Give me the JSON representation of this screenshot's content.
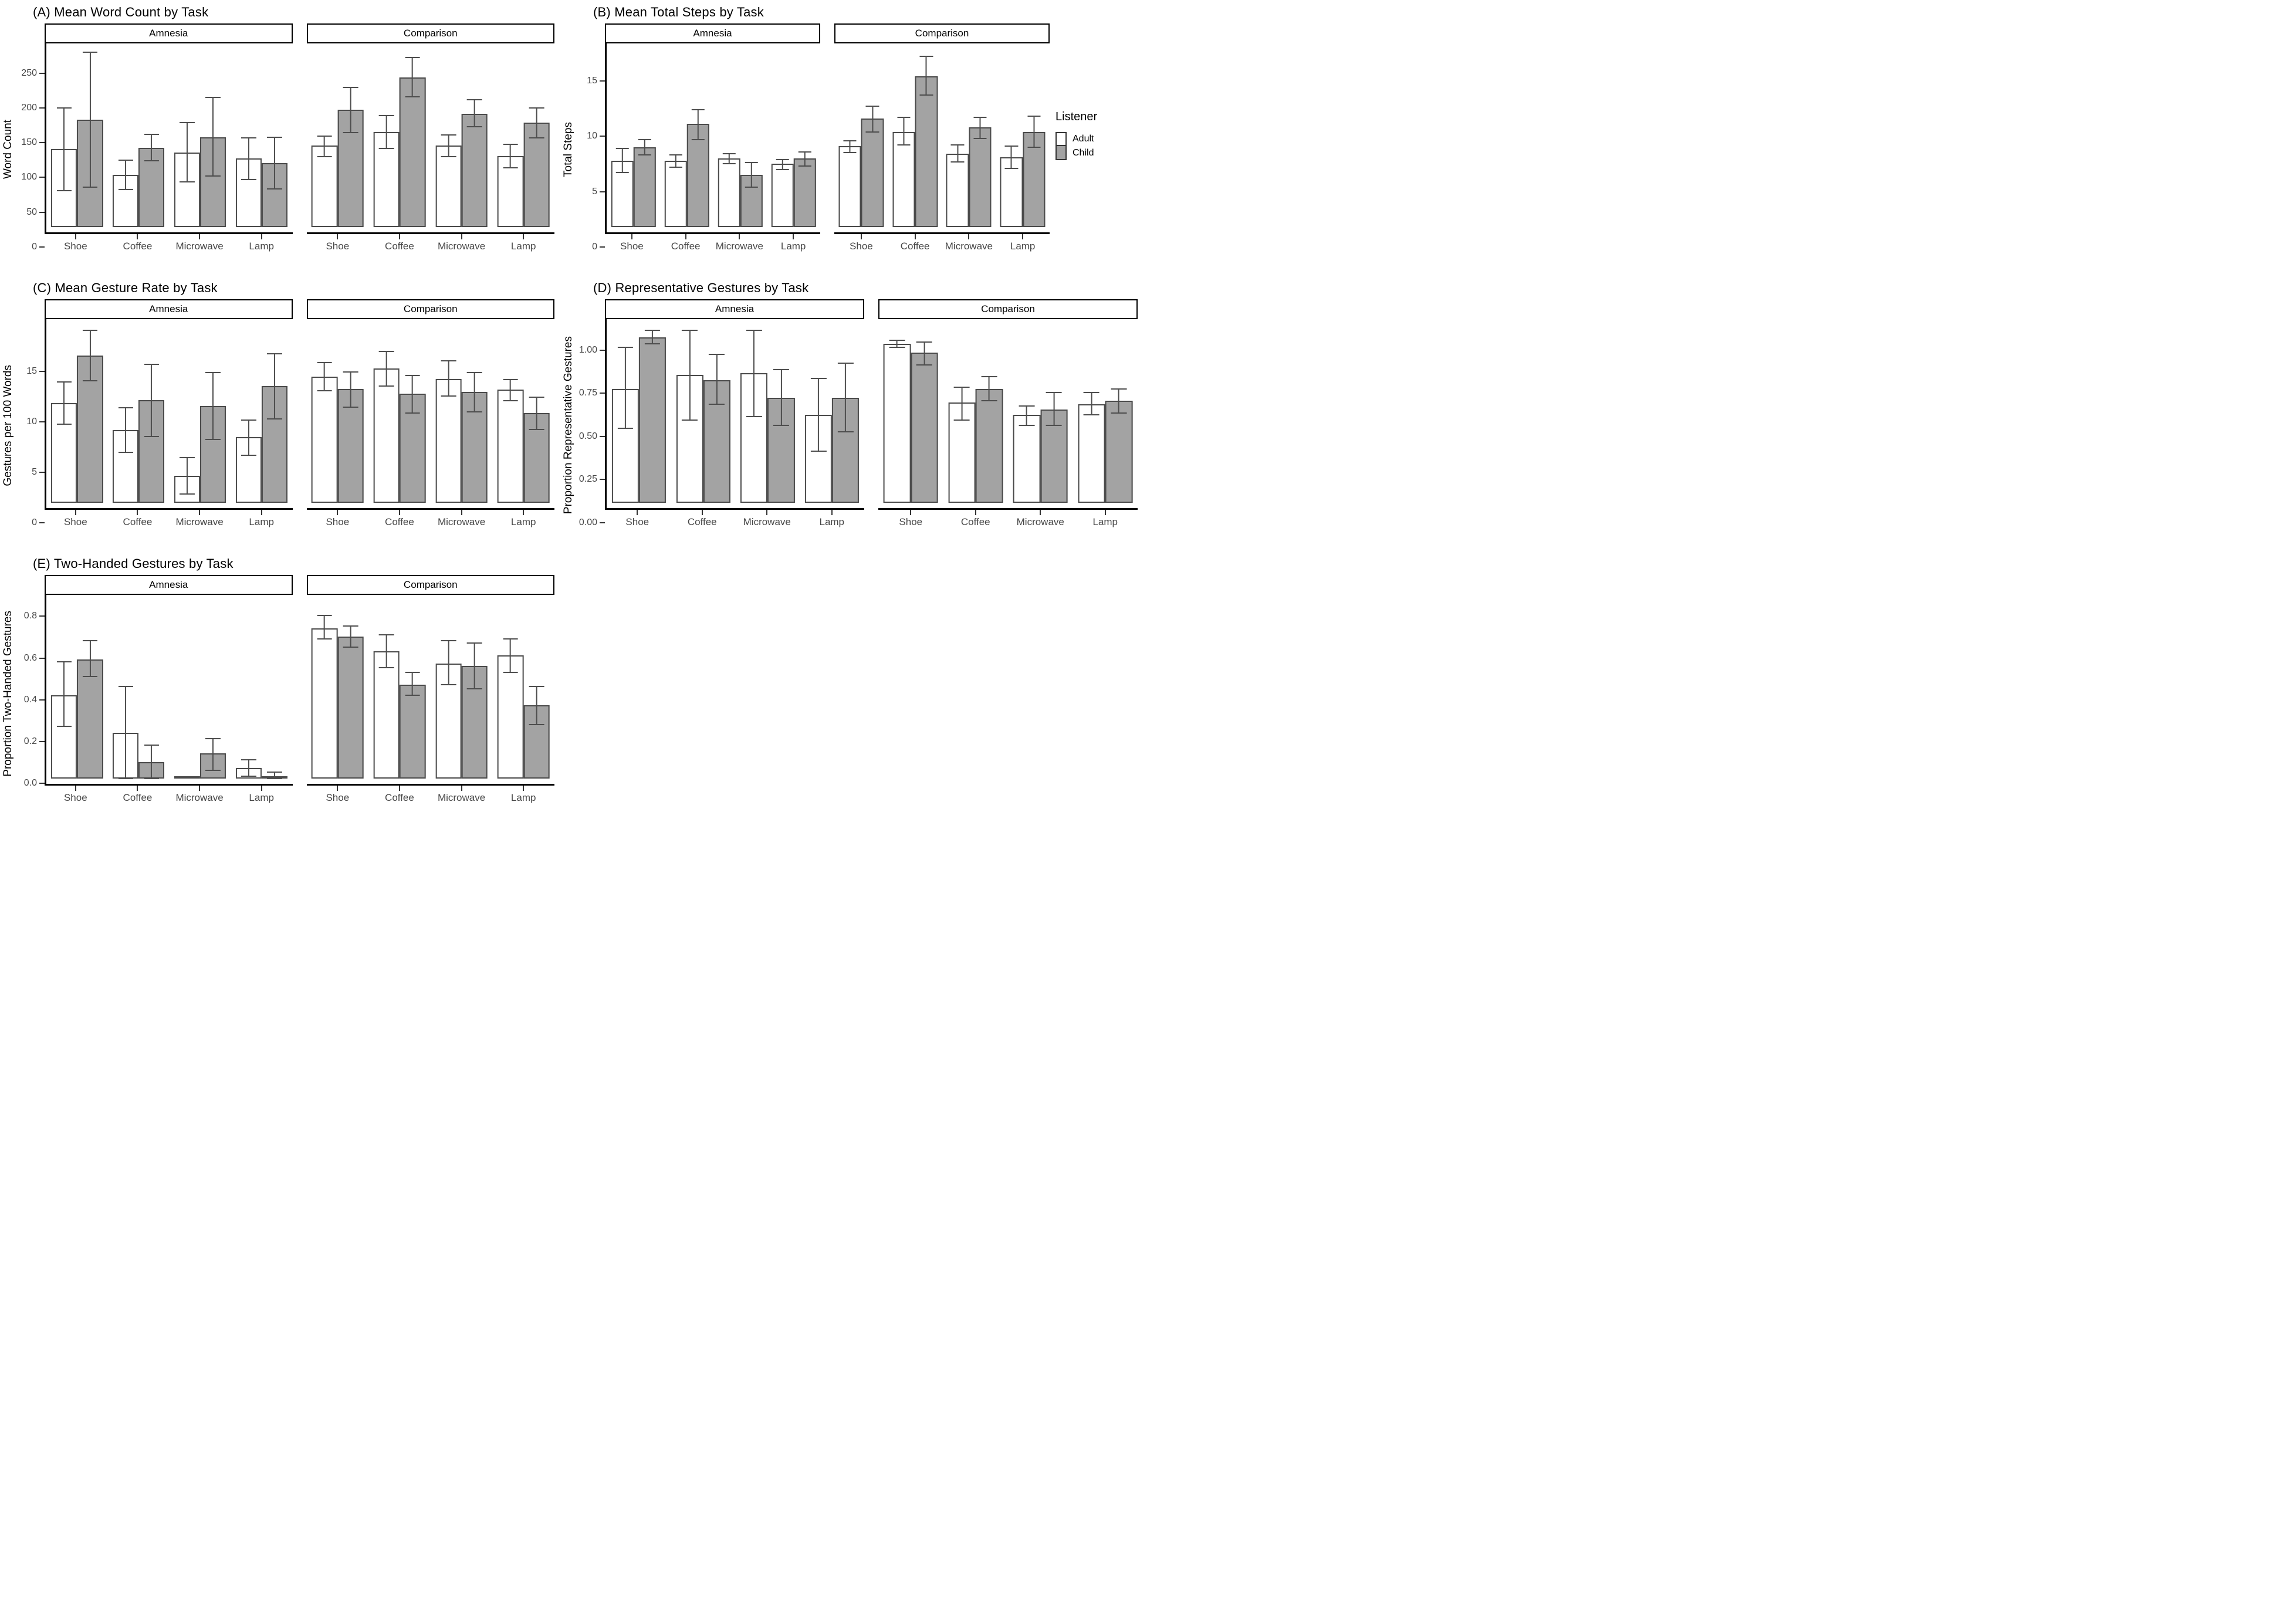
{
  "figure": {
    "legend": {
      "title": "Listener",
      "items": [
        {
          "label": "Adult",
          "color": "#ffffff"
        },
        {
          "label": "Child",
          "color": "#a3a3a3"
        }
      ]
    },
    "colors": {
      "adult_fill": "#ffffff",
      "child_fill": "#a3a3a3",
      "bar_border": "#4a4a4a",
      "error_color": "#4d4d4d",
      "axis_color": "#000000",
      "tick_text": "#474747"
    }
  },
  "chart_data": [
    {
      "id": "A",
      "type": "bar",
      "title": "(A) Mean Word Count by Task",
      "ylabel": "Word Count",
      "ylim": [
        0,
        258
      ],
      "yticks": [
        {
          "v": 0,
          "label": "0"
        },
        {
          "v": 50,
          "label": "50"
        },
        {
          "v": 100,
          "label": "100"
        },
        {
          "v": 150,
          "label": "150"
        },
        {
          "v": 200,
          "label": "200"
        },
        {
          "v": 250,
          "label": "250"
        }
      ],
      "categories": [
        "Shoe",
        "Coffee",
        "Microwave",
        "Lamp"
      ],
      "facets": [
        {
          "label": "Amnesia",
          "series": [
            {
              "name": "Adult",
              "values": [
                112,
                75,
                107,
                99
              ],
              "err_lo": [
                52,
                54,
                65,
                68
              ],
              "err_hi": [
                171,
                96,
                150,
                128
              ]
            },
            {
              "name": "Child",
              "values": [
                154,
                114,
                129,
                92
              ],
              "err_lo": [
                57,
                95,
                73,
                55
              ],
              "err_hi": [
                251,
                133,
                186,
                129
              ]
            }
          ]
        },
        {
          "label": "Comparison",
          "series": [
            {
              "name": "Adult",
              "values": [
                117,
                137,
                117,
                102
              ],
              "err_lo": [
                101,
                113,
                101,
                85
              ],
              "err_hi": [
                131,
                160,
                132,
                119
              ]
            },
            {
              "name": "Child",
              "values": [
                169,
                215,
                163,
                150
              ],
              "err_lo": [
                136,
                187,
                144,
                128
              ],
              "err_hi": [
                201,
                244,
                183,
                171
              ]
            }
          ]
        }
      ]
    },
    {
      "id": "B",
      "type": "bar",
      "title": "(B) Mean Total Steps by Task",
      "ylabel": "Total Steps",
      "ylim": [
        0,
        16.2
      ],
      "yticks": [
        {
          "v": 0,
          "label": "0"
        },
        {
          "v": 5,
          "label": "5"
        },
        {
          "v": 10,
          "label": "10"
        },
        {
          "v": 15,
          "label": "15"
        }
      ],
      "categories": [
        "Shoe",
        "Coffee",
        "Microwave",
        "Lamp"
      ],
      "facets": [
        {
          "label": "Amnesia",
          "series": [
            {
              "name": "Adult",
              "values": [
                6.0,
                6.0,
                6.2,
                5.7
              ],
              "err_lo": [
                4.9,
                5.4,
                5.7,
                5.2
              ],
              "err_hi": [
                7.1,
                6.5,
                6.6,
                6.1
              ]
            },
            {
              "name": "Child",
              "values": [
                7.2,
                9.3,
                4.7,
                6.2
              ],
              "err_lo": [
                6.5,
                7.9,
                3.6,
                5.5
              ],
              "err_hi": [
                7.9,
                10.6,
                5.8,
                6.8
              ]
            }
          ]
        },
        {
          "label": "Comparison",
          "series": [
            {
              "name": "Adult",
              "values": [
                7.3,
                8.6,
                6.6,
                6.3
              ],
              "err_lo": [
                6.7,
                7.4,
                5.9,
                5.3
              ],
              "err_hi": [
                7.8,
                9.9,
                7.4,
                7.3
              ]
            },
            {
              "name": "Child",
              "values": [
                9.8,
                13.6,
                9.0,
                8.6
              ],
              "err_lo": [
                8.6,
                11.9,
                8.0,
                7.2
              ],
              "err_hi": [
                10.9,
                15.4,
                9.9,
                10.0
              ]
            }
          ]
        }
      ]
    },
    {
      "id": "C",
      "type": "bar",
      "title": "(C) Mean Gesture Rate by Task",
      "ylabel": "Gestures per 100 Words",
      "ylim": [
        0,
        17.8
      ],
      "yticks": [
        {
          "v": 0,
          "label": "0"
        },
        {
          "v": 5,
          "label": "5"
        },
        {
          "v": 10,
          "label": "10"
        },
        {
          "v": 15,
          "label": "15"
        }
      ],
      "categories": [
        "Shoe",
        "Coffee",
        "Microwave",
        "Lamp"
      ],
      "facets": [
        {
          "label": "Amnesia",
          "series": [
            {
              "name": "Adult",
              "values": [
                9.9,
                7.2,
                2.7,
                6.5
              ],
              "err_lo": [
                7.8,
                5.0,
                0.9,
                4.7
              ],
              "err_hi": [
                12.0,
                9.4,
                4.5,
                8.2
              ]
            },
            {
              "name": "Child",
              "values": [
                14.6,
                10.2,
                9.6,
                11.6
              ],
              "err_lo": [
                12.1,
                6.6,
                6.3,
                8.3
              ],
              "err_hi": [
                17.1,
                13.7,
                12.9,
                14.8
              ]
            }
          ]
        },
        {
          "label": "Comparison",
          "series": [
            {
              "name": "Adult",
              "values": [
                12.5,
                13.3,
                12.3,
                11.2
              ],
              "err_lo": [
                11.1,
                11.6,
                10.6,
                10.1
              ],
              "err_hi": [
                13.9,
                15.0,
                14.1,
                12.2
              ]
            },
            {
              "name": "Child",
              "values": [
                11.3,
                10.8,
                11.0,
                8.9
              ],
              "err_lo": [
                9.5,
                8.9,
                9.0,
                7.3
              ],
              "err_hi": [
                13.0,
                12.6,
                12.9,
                10.5
              ]
            }
          ]
        }
      ]
    },
    {
      "id": "D",
      "type": "bar",
      "title": "(D) Representative Gestures by Task",
      "ylabel": "Proportion Representative Gestures",
      "ylim": [
        0,
        1.04
      ],
      "yticks": [
        {
          "v": 0,
          "label": "0.00"
        },
        {
          "v": 0.25,
          "label": "0.25"
        },
        {
          "v": 0.5,
          "label": "0.50"
        },
        {
          "v": 0.75,
          "label": "0.75"
        },
        {
          "v": 1.0,
          "label": "1.00"
        }
      ],
      "categories": [
        "Shoe",
        "Coffee",
        "Microwave",
        "Lamp"
      ],
      "facets": [
        {
          "label": "Amnesia",
          "series": [
            {
              "name": "Adult",
              "values": [
                0.66,
                0.74,
                0.75,
                0.51
              ],
              "err_lo": [
                0.43,
                0.48,
                0.5,
                0.3
              ],
              "err_hi": [
                0.9,
                1.0,
                1.0,
                0.72
              ]
            },
            {
              "name": "Child",
              "values": [
                0.96,
                0.71,
                0.61,
                0.61
              ],
              "err_lo": [
                0.92,
                0.57,
                0.45,
                0.41
              ],
              "err_hi": [
                1.0,
                0.86,
                0.77,
                0.81
              ]
            }
          ]
        },
        {
          "label": "Comparison",
          "series": [
            {
              "name": "Adult",
              "values": [
                0.92,
                0.58,
                0.51,
                0.57
              ],
              "err_lo": [
                0.9,
                0.48,
                0.45,
                0.51
              ],
              "err_hi": [
                0.94,
                0.67,
                0.56,
                0.64
              ]
            },
            {
              "name": "Child",
              "values": [
                0.87,
                0.66,
                0.54,
                0.59
              ],
              "err_lo": [
                0.8,
                0.59,
                0.45,
                0.52
              ],
              "err_hi": [
                0.93,
                0.73,
                0.64,
                0.66
              ]
            }
          ]
        }
      ]
    },
    {
      "id": "E",
      "type": "bar",
      "title": "(E) Two-Handed Gestures by Task",
      "ylabel": "Proportion Two-Handed Gestures",
      "ylim": [
        0,
        0.86
      ],
      "yticks": [
        {
          "v": 0,
          "label": "0.0"
        },
        {
          "v": 0.2,
          "label": "0.2"
        },
        {
          "v": 0.4,
          "label": "0.4"
        },
        {
          "v": 0.6,
          "label": "0.6"
        },
        {
          "v": 0.8,
          "label": "0.8"
        }
      ],
      "categories": [
        "Shoe",
        "Coffee",
        "Microwave",
        "Lamp"
      ],
      "facets": [
        {
          "label": "Amnesia",
          "series": [
            {
              "name": "Adult",
              "values": [
                0.4,
                0.22,
                0.0,
                0.05
              ],
              "err_lo": [
                0.25,
                0.0,
                null,
                0.01
              ],
              "err_hi": [
                0.56,
                0.44,
                null,
                0.09
              ]
            },
            {
              "name": "Child",
              "values": [
                0.57,
                0.08,
                0.12,
                0.01
              ],
              "err_lo": [
                0.49,
                0.0,
                0.04,
                0.0
              ],
              "err_hi": [
                0.66,
                0.16,
                0.19,
                0.03
              ]
            }
          ]
        },
        {
          "label": "Comparison",
          "series": [
            {
              "name": "Adult",
              "values": [
                0.72,
                0.61,
                0.55,
                0.59
              ],
              "err_lo": [
                0.67,
                0.53,
                0.45,
                0.51
              ],
              "err_hi": [
                0.78,
                0.69,
                0.66,
                0.67
              ]
            },
            {
              "name": "Child",
              "values": [
                0.68,
                0.45,
                0.54,
                0.35
              ],
              "err_lo": [
                0.63,
                0.4,
                0.43,
                0.26
              ],
              "err_hi": [
                0.73,
                0.51,
                0.65,
                0.44
              ]
            }
          ]
        }
      ]
    }
  ]
}
